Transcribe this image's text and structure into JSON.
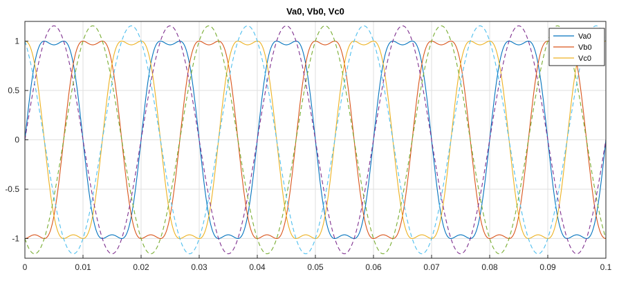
{
  "chart_data": {
    "type": "line",
    "title": "Va0, Vb0, Vc0",
    "xlabel": "",
    "ylabel": "",
    "xlim": [
      0,
      0.1
    ],
    "ylim": [
      -1.2,
      1.2
    ],
    "x_ticks": [
      {
        "value": 0,
        "label": "0"
      },
      {
        "value": 0.01,
        "label": "0.01"
      },
      {
        "value": 0.02,
        "label": "0.02"
      },
      {
        "value": 0.03,
        "label": "0.03"
      },
      {
        "value": 0.04,
        "label": "0.04"
      },
      {
        "value": 0.05,
        "label": "0.05"
      },
      {
        "value": 0.06,
        "label": "0.06"
      },
      {
        "value": 0.07,
        "label": "0.07"
      },
      {
        "value": 0.08,
        "label": "0.08"
      },
      {
        "value": 0.09,
        "label": "0.09"
      },
      {
        "value": 0.1,
        "label": "0.1"
      }
    ],
    "y_ticks": [
      {
        "value": 1,
        "label": "1"
      },
      {
        "value": 0.5,
        "label": "0.5"
      },
      {
        "value": 0,
        "label": "0"
      },
      {
        "value": -0.5,
        "label": "-0.5"
      },
      {
        "value": -1,
        "label": "-1"
      }
    ],
    "grid": true,
    "legend_position": "top-right",
    "frequency_hz": 50,
    "series": [
      {
        "name": "Va0",
        "color": "#0072BD",
        "style": "solid",
        "amplitude": 1.155,
        "phase_deg": 0,
        "third_harmonic": 0.1925
      },
      {
        "name": "Vb0",
        "color": "#D95319",
        "style": "solid",
        "amplitude": 1.155,
        "phase_deg": -120,
        "third_harmonic": 0.1925
      },
      {
        "name": "Vc0",
        "color": "#EDB120",
        "style": "solid",
        "amplitude": 1.155,
        "phase_deg": 120,
        "third_harmonic": 0.1925
      },
      {
        "color": "#7E2F8E",
        "style": "dashed",
        "amplitude": 1.155,
        "phase_deg": 0,
        "third_harmonic": 0
      },
      {
        "color": "#77AC30",
        "style": "dashed",
        "amplitude": 1.155,
        "phase_deg": -120,
        "third_harmonic": 0
      },
      {
        "color": "#4DBEEE",
        "style": "dashed",
        "amplitude": 1.155,
        "phase_deg": 120,
        "third_harmonic": 0
      }
    ]
  }
}
